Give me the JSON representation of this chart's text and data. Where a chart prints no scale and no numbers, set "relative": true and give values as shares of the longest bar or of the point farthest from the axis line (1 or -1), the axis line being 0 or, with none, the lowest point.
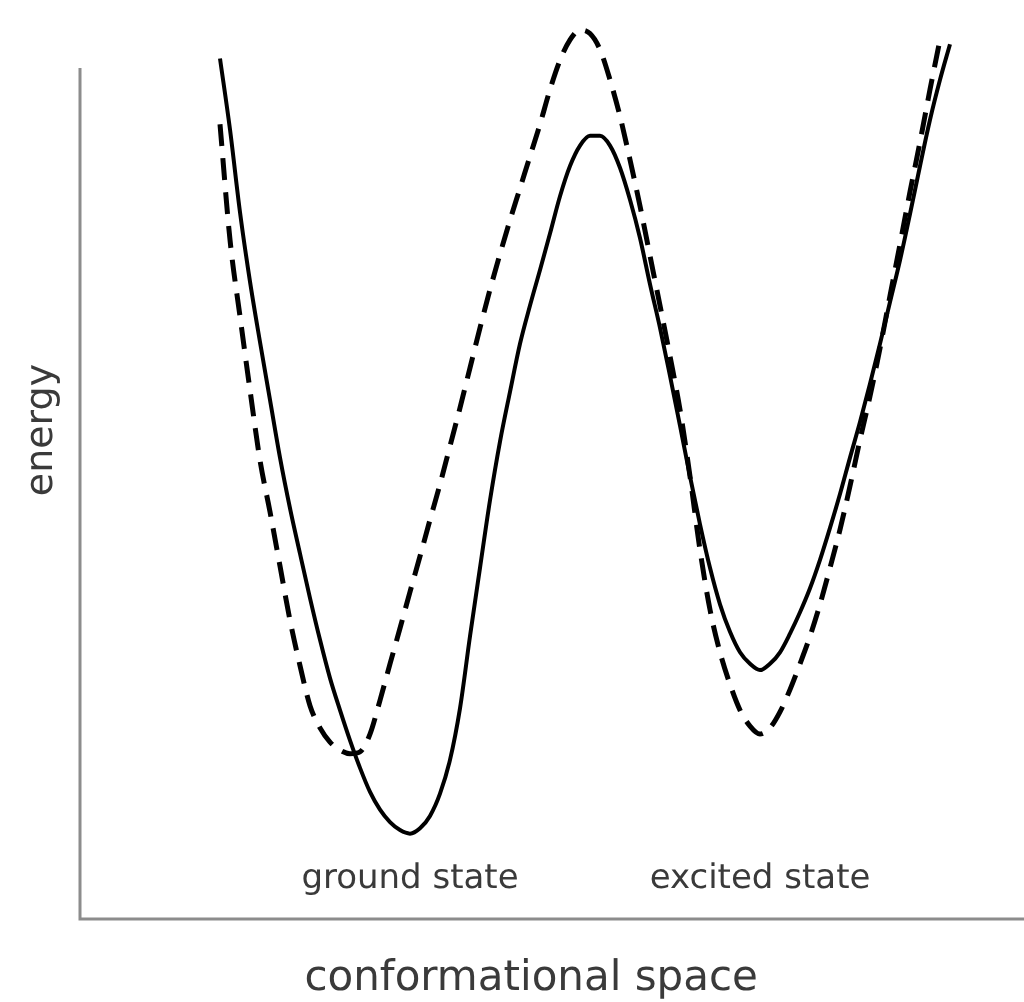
{
  "chart_data": {
    "type": "line",
    "relative": true,
    "xlabel": "conformational space",
    "ylabel": "energy",
    "marker": "none",
    "annotations": [
      "ground state",
      "excited state"
    ],
    "categories": [
      null,
      null,
      null,
      null,
      null,
      null,
      null,
      null,
      null,
      null,
      null,
      null,
      null,
      null,
      null,
      null,
      null,
      null,
      null,
      null,
      null,
      null,
      null,
      null,
      null,
      null,
      null,
      null,
      null,
      null,
      null,
      null,
      null,
      null,
      null,
      null,
      null,
      null,
      null,
      null,
      null,
      null,
      null,
      null,
      null,
      null,
      null,
      null,
      null,
      null,
      null,
      null,
      null,
      null,
      null,
      null,
      null,
      null,
      null,
      null,
      null,
      null,
      null,
      null,
      null,
      null,
      null,
      null,
      null,
      null,
      null,
      null,
      null,
      null,
      null,
      null,
      null,
      null,
      null,
      null,
      null,
      null,
      null,
      null,
      null,
      null,
      null,
      null,
      null,
      null,
      null,
      null,
      null,
      null,
      null
    ],
    "series": [
      {
        "color": "#000000",
        "line_style": "solid",
        "values": [
          null,
          null,
          null,
          null,
          null,
          null,
          null,
          null,
          null,
          null,
          null,
          null,
          null,
          null,
          0.968,
          0.888,
          0.795,
          0.717,
          0.649,
          0.584,
          0.519,
          0.462,
          0.411,
          0.361,
          0.314,
          0.271,
          0.235,
          0.201,
          0.17,
          0.143,
          0.123,
          0.109,
          0.1,
          0.096,
          0.102,
          0.116,
          0.141,
          0.179,
          0.237,
          0.318,
          0.395,
          0.471,
          0.537,
          0.593,
          0.647,
          0.69,
          0.73,
          0.771,
          0.813,
          0.847,
          0.87,
          0.881,
          0.881,
          0.87,
          0.845,
          0.809,
          0.766,
          0.714,
          0.665,
          0.611,
          0.555,
          0.498,
          0.444,
          0.395,
          0.354,
          0.323,
          0.3,
          0.287,
          0.28,
          0.287,
          0.3,
          0.321,
          0.345,
          0.372,
          0.404,
          0.44,
          0.478,
          0.519,
          0.559,
          0.602,
          0.647,
          0.694,
          0.741,
          0.793,
          0.847,
          0.899,
          0.944,
          0.984,
          null,
          null,
          null,
          null,
          null,
          null,
          null
        ]
      },
      {
        "color": "#000000",
        "line_style": "dashed",
        "values": [
          null,
          null,
          null,
          null,
          null,
          null,
          null,
          null,
          null,
          null,
          null,
          null,
          null,
          null,
          0.894,
          0.764,
          0.678,
          0.595,
          0.516,
          0.458,
          0.397,
          0.336,
          0.285,
          0.24,
          0.215,
          0.199,
          0.19,
          0.186,
          0.188,
          0.208,
          0.246,
          0.287,
          0.327,
          0.368,
          0.408,
          0.449,
          0.489,
          0.532,
          0.575,
          0.62,
          0.665,
          0.708,
          0.748,
          0.786,
          0.822,
          0.858,
          0.894,
          0.933,
          0.966,
          0.989,
          1,
          0.996,
          0.978,
          0.944,
          0.903,
          0.854,
          0.802,
          0.746,
          0.69,
          0.633,
          0.573,
          0.498,
          0.415,
          0.348,
          0.3,
          0.264,
          0.235,
          0.217,
          0.208,
          0.215,
          0.233,
          0.258,
          0.287,
          0.318,
          0.354,
          0.395,
          0.438,
          0.487,
          0.539,
          0.588,
          0.642,
          0.701,
          0.759,
          0.818,
          0.874,
          0.933,
          0.989,
          null,
          null,
          null,
          null,
          null,
          null,
          null,
          null
        ]
      }
    ]
  }
}
